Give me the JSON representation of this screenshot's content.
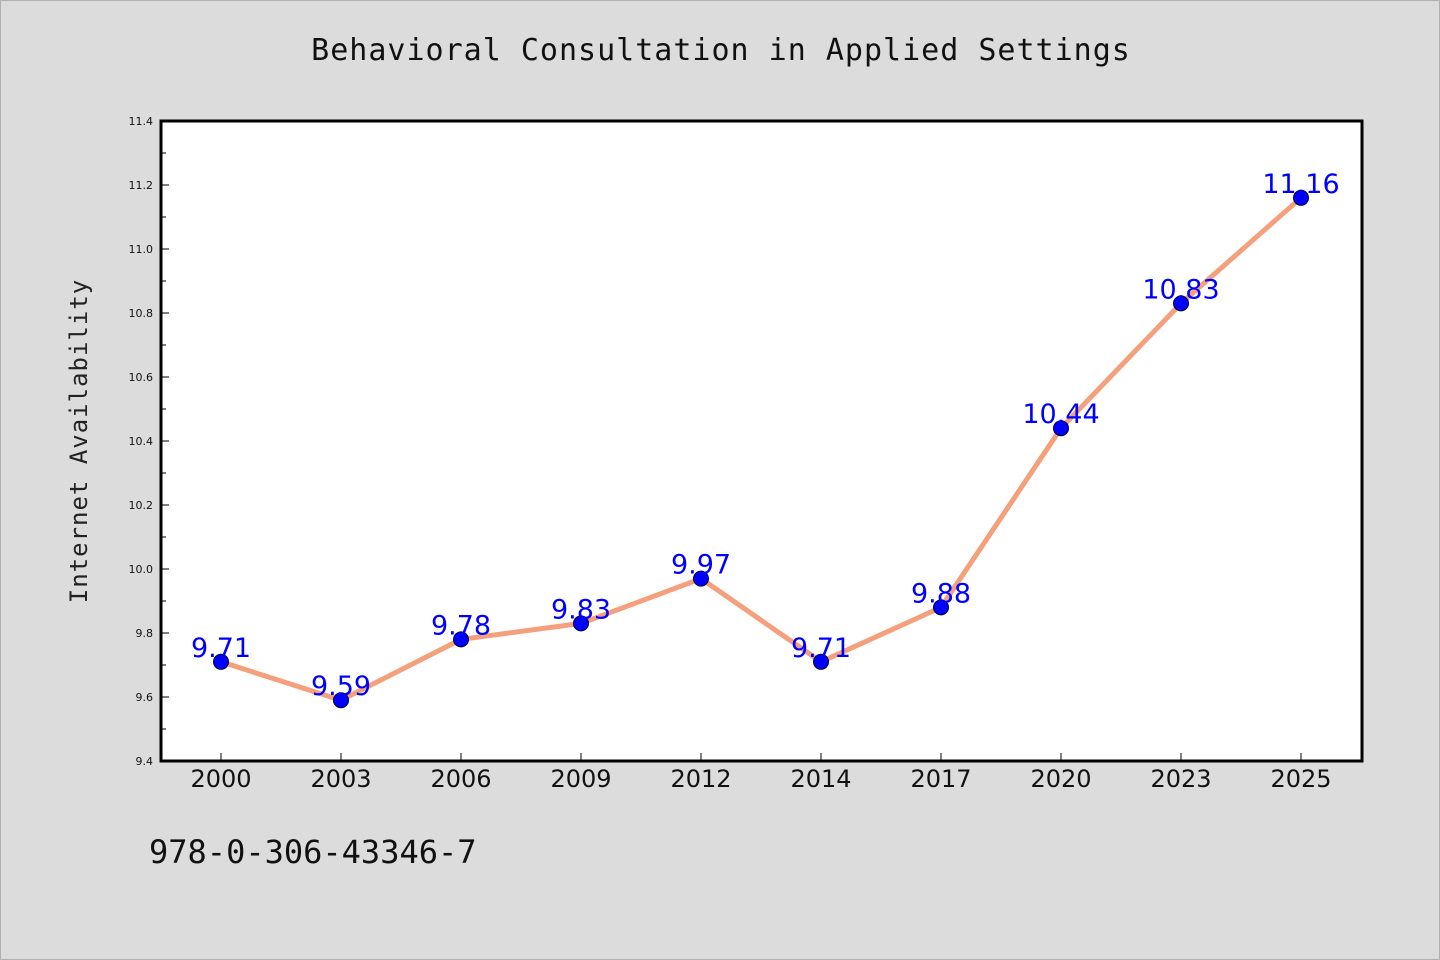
{
  "chart_data": {
    "type": "line",
    "title": "Behavioral Consultation in Applied Settings",
    "xlabel": "",
    "ylabel": "Internet Availability",
    "categories": [
      "2000",
      "2003",
      "2006",
      "2009",
      "2012",
      "2014",
      "2017",
      "2020",
      "2023",
      "2025"
    ],
    "series": [
      {
        "values": [
          9.71,
          9.59,
          9.78,
          9.83,
          9.97,
          9.71,
          9.88,
          10.44,
          10.83,
          11.16
        ],
        "data_labels": [
          "9.71",
          "9.59",
          "9.78",
          "9.83",
          "9.97",
          "9.71",
          "9.88",
          "10.44",
          "10.83",
          "11.16"
        ],
        "line_color": "#f4a07c",
        "marker_color": "#0000ff"
      }
    ],
    "ylim": [
      9.4,
      11.4
    ],
    "yticks": [
      "9.4",
      "9.6",
      "9.8",
      "10.0",
      "10.2",
      "10.4",
      "10.6",
      "10.8",
      "11.0",
      "11.2",
      "11.4"
    ],
    "grid": false,
    "legend": "none",
    "background_color": "#dcdcdc",
    "plot_background_color": "#ffffff",
    "data_label_color": "#0000ff"
  },
  "footer": {
    "isbn": "978-0-306-43346-7"
  }
}
